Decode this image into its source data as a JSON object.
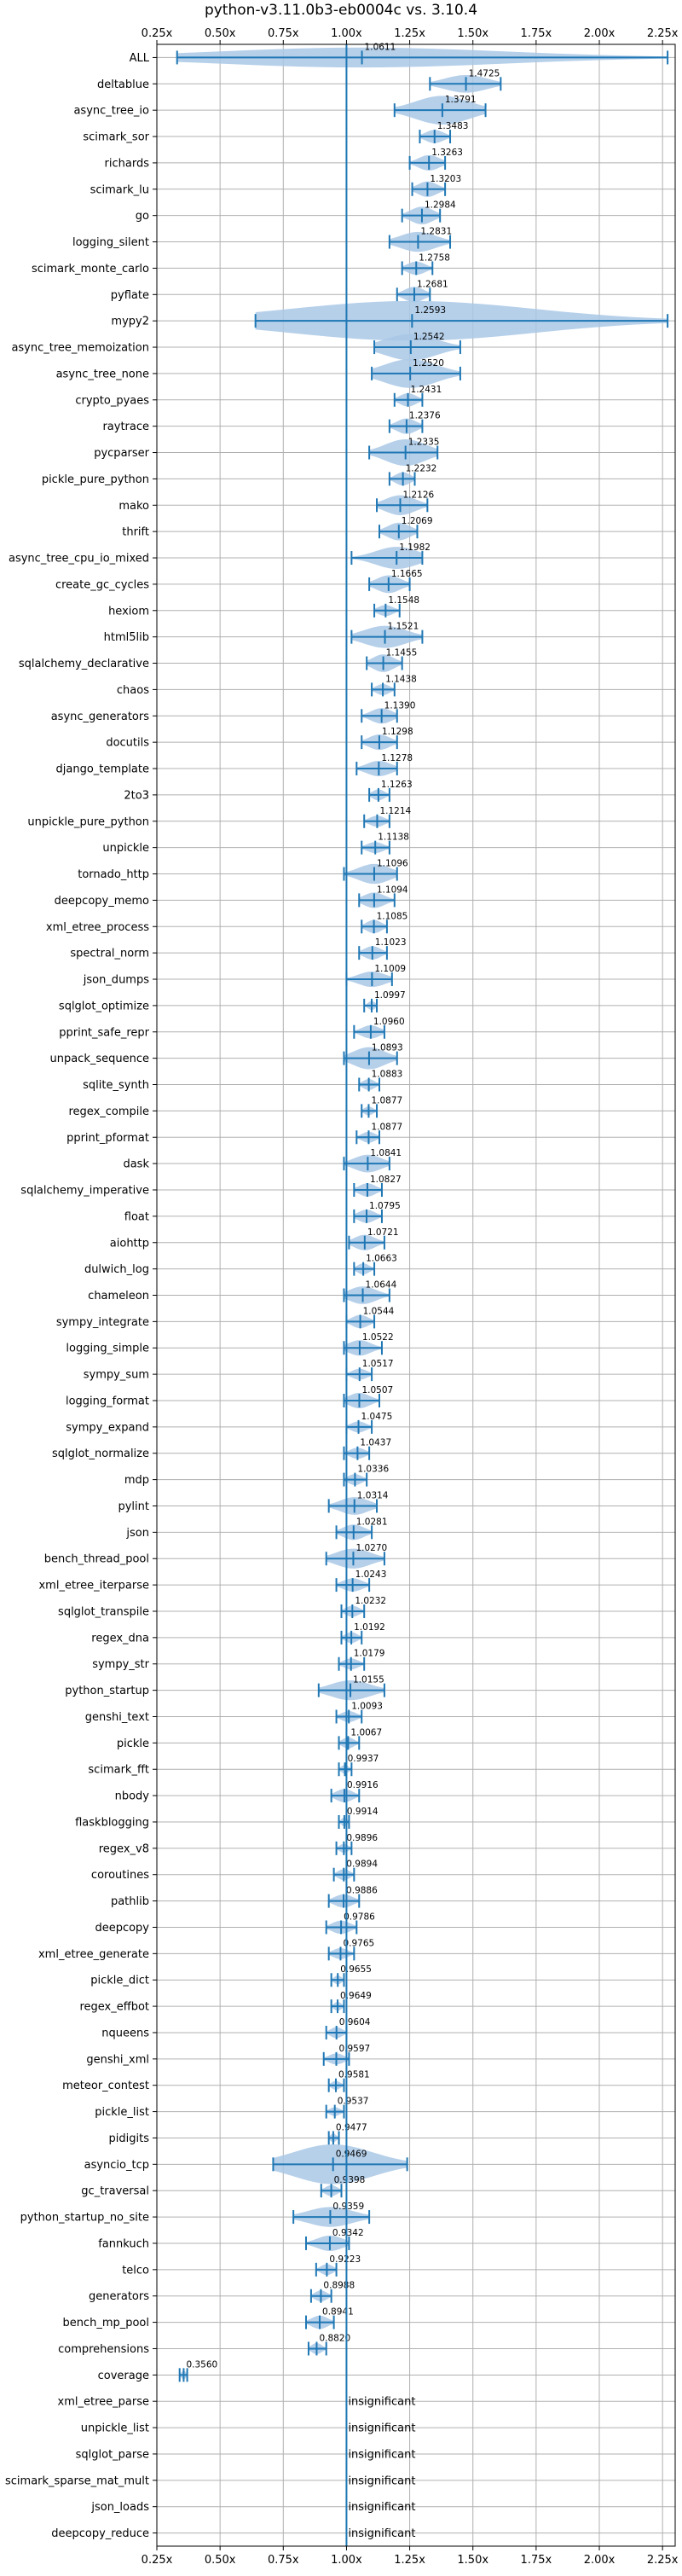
{
  "chart_data": {
    "type": "violin",
    "title": "python-v3.11.0b3-eb0004c vs. 3.10.4",
    "xlim": [
      0.25,
      2.3
    ],
    "xticks": [
      0.25,
      0.5,
      0.75,
      1.0,
      1.25,
      1.5,
      1.75,
      2.0,
      2.25
    ],
    "xtick_labels": [
      "0.25x",
      "0.50x",
      "0.75x",
      "1.00x",
      "1.25x",
      "1.50x",
      "1.75x",
      "2.00x",
      "2.25x"
    ],
    "reference_line": 1.0,
    "grid": true,
    "colors": {
      "violin": "#a9c8e6",
      "marker": "#1f77b4",
      "line": "#1f77b4"
    },
    "insignificant_label": "insignificant",
    "benchmarks": [
      {
        "name": "ALL",
        "mean": 1.0611,
        "label": "1.0611",
        "min": 0.33,
        "max": 2.27,
        "width": 0.09
      },
      {
        "name": "deltablue",
        "mean": 1.4725,
        "label": "1.4725",
        "min": 1.33,
        "max": 1.61,
        "width": 0.08
      },
      {
        "name": "async_tree_io",
        "mean": 1.3791,
        "label": "1.3791",
        "min": 1.19,
        "max": 1.55,
        "width": 0.13
      },
      {
        "name": "scimark_sor",
        "mean": 1.3483,
        "label": "1.3483",
        "min": 1.29,
        "max": 1.41,
        "width": 0.06
      },
      {
        "name": "richards",
        "mean": 1.3263,
        "label": "1.3263",
        "min": 1.25,
        "max": 1.39,
        "width": 0.07
      },
      {
        "name": "scimark_lu",
        "mean": 1.3203,
        "label": "1.3203",
        "min": 1.26,
        "max": 1.39,
        "width": 0.07
      },
      {
        "name": "go",
        "mean": 1.2984,
        "label": "1.2984",
        "min": 1.22,
        "max": 1.37,
        "width": 0.08
      },
      {
        "name": "logging_silent",
        "mean": 1.2831,
        "label": "1.2831",
        "min": 1.17,
        "max": 1.41,
        "width": 0.09
      },
      {
        "name": "scimark_monte_carlo",
        "mean": 1.2758,
        "label": "1.2758",
        "min": 1.22,
        "max": 1.34,
        "width": 0.06
      },
      {
        "name": "pyflate",
        "mean": 1.2681,
        "label": "1.2681",
        "min": 1.2,
        "max": 1.33,
        "width": 0.07
      },
      {
        "name": "mypy2",
        "mean": 1.2593,
        "label": "1.2593",
        "min": 0.64,
        "max": 2.27,
        "width": 0.18
      },
      {
        "name": "async_tree_memoization",
        "mean": 1.2542,
        "label": "1.2542",
        "min": 1.11,
        "max": 1.45,
        "width": 0.12
      },
      {
        "name": "async_tree_none",
        "mean": 1.252,
        "label": "1.2520",
        "min": 1.1,
        "max": 1.45,
        "width": 0.13
      },
      {
        "name": "crypto_pyaes",
        "mean": 1.2431,
        "label": "1.2431",
        "min": 1.19,
        "max": 1.3,
        "width": 0.06
      },
      {
        "name": "raytrace",
        "mean": 1.2376,
        "label": "1.2376",
        "min": 1.17,
        "max": 1.3,
        "width": 0.07
      },
      {
        "name": "pycparser",
        "mean": 1.2335,
        "label": "1.2335",
        "min": 1.09,
        "max": 1.36,
        "width": 0.12
      },
      {
        "name": "pickle_pure_python",
        "mean": 1.2232,
        "label": "1.2232",
        "min": 1.17,
        "max": 1.27,
        "width": 0.06
      },
      {
        "name": "mako",
        "mean": 1.2126,
        "label": "1.2126",
        "min": 1.12,
        "max": 1.32,
        "width": 0.09
      },
      {
        "name": "thrift",
        "mean": 1.2069,
        "label": "1.2069",
        "min": 1.13,
        "max": 1.28,
        "width": 0.08
      },
      {
        "name": "async_tree_cpu_io_mixed",
        "mean": 1.1982,
        "label": "1.1982",
        "min": 1.02,
        "max": 1.3,
        "width": 0.1
      },
      {
        "name": "create_gc_cycles",
        "mean": 1.1665,
        "label": "1.1665",
        "min": 1.09,
        "max": 1.25,
        "width": 0.08
      },
      {
        "name": "hexiom",
        "mean": 1.1548,
        "label": "1.1548",
        "min": 1.11,
        "max": 1.21,
        "width": 0.05
      },
      {
        "name": "html5lib",
        "mean": 1.1521,
        "label": "1.1521",
        "min": 1.02,
        "max": 1.3,
        "width": 0.1
      },
      {
        "name": "sqlalchemy_declarative",
        "mean": 1.1455,
        "label": "1.1455",
        "min": 1.08,
        "max": 1.22,
        "width": 0.08
      },
      {
        "name": "chaos",
        "mean": 1.1438,
        "label": "1.1438",
        "min": 1.1,
        "max": 1.19,
        "width": 0.05
      },
      {
        "name": "async_generators",
        "mean": 1.139,
        "label": "1.1390",
        "min": 1.06,
        "max": 1.2,
        "width": 0.07
      },
      {
        "name": "docutils",
        "mean": 1.1298,
        "label": "1.1298",
        "min": 1.06,
        "max": 1.2,
        "width": 0.07
      },
      {
        "name": "django_template",
        "mean": 1.1278,
        "label": "1.1278",
        "min": 1.04,
        "max": 1.2,
        "width": 0.07
      },
      {
        "name": "2to3",
        "mean": 1.1263,
        "label": "1.1263",
        "min": 1.09,
        "max": 1.17,
        "width": 0.05
      },
      {
        "name": "unpickle_pure_python",
        "mean": 1.1214,
        "label": "1.1214",
        "min": 1.07,
        "max": 1.17,
        "width": 0.05
      },
      {
        "name": "unpickle",
        "mean": 1.1138,
        "label": "1.1138",
        "min": 1.06,
        "max": 1.17,
        "width": 0.05
      },
      {
        "name": "tornado_http",
        "mean": 1.1096,
        "label": "1.1096",
        "min": 0.99,
        "max": 1.2,
        "width": 0.09
      },
      {
        "name": "deepcopy_memo",
        "mean": 1.1094,
        "label": "1.1094",
        "min": 1.05,
        "max": 1.19,
        "width": 0.07
      },
      {
        "name": "xml_etree_process",
        "mean": 1.1085,
        "label": "1.1085",
        "min": 1.06,
        "max": 1.16,
        "width": 0.06
      },
      {
        "name": "spectral_norm",
        "mean": 1.1023,
        "label": "1.1023",
        "min": 1.05,
        "max": 1.16,
        "width": 0.06
      },
      {
        "name": "json_dumps",
        "mean": 1.1009,
        "label": "1.1009",
        "min": 1.0,
        "max": 1.18,
        "width": 0.07
      },
      {
        "name": "sqlglot_optimize",
        "mean": 1.0997,
        "label": "1.0997",
        "min": 1.07,
        "max": 1.12,
        "width": 0.04
      },
      {
        "name": "pprint_safe_repr",
        "mean": 1.096,
        "label": "1.0960",
        "min": 1.03,
        "max": 1.15,
        "width": 0.06
      },
      {
        "name": "unpack_sequence",
        "mean": 1.0893,
        "label": "1.0893",
        "min": 0.99,
        "max": 1.2,
        "width": 0.1
      },
      {
        "name": "sqlite_synth",
        "mean": 1.0883,
        "label": "1.0883",
        "min": 1.05,
        "max": 1.13,
        "width": 0.05
      },
      {
        "name": "regex_compile",
        "mean": 1.0877,
        "label": "1.0877",
        "min": 1.06,
        "max": 1.12,
        "width": 0.04
      },
      {
        "name": "pprint_pformat",
        "mean": 1.0877,
        "label": "1.0877",
        "min": 1.04,
        "max": 1.13,
        "width": 0.05
      },
      {
        "name": "dask",
        "mean": 1.0841,
        "label": "1.0841",
        "min": 0.99,
        "max": 1.17,
        "width": 0.08
      },
      {
        "name": "sqlalchemy_imperative",
        "mean": 1.0827,
        "label": "1.0827",
        "min": 1.03,
        "max": 1.14,
        "width": 0.06
      },
      {
        "name": "float",
        "mean": 1.0795,
        "label": "1.0795",
        "min": 1.03,
        "max": 1.14,
        "width": 0.06
      },
      {
        "name": "aiohttp",
        "mean": 1.0721,
        "label": "1.0721",
        "min": 1.01,
        "max": 1.15,
        "width": 0.07
      },
      {
        "name": "dulwich_log",
        "mean": 1.0663,
        "label": "1.0663",
        "min": 1.03,
        "max": 1.11,
        "width": 0.05
      },
      {
        "name": "chameleon",
        "mean": 1.0644,
        "label": "1.0644",
        "min": 0.99,
        "max": 1.17,
        "width": 0.08
      },
      {
        "name": "sympy_integrate",
        "mean": 1.0544,
        "label": "1.0544",
        "min": 1.0,
        "max": 1.11,
        "width": 0.06
      },
      {
        "name": "logging_simple",
        "mean": 1.0522,
        "label": "1.0522",
        "min": 0.99,
        "max": 1.14,
        "width": 0.07
      },
      {
        "name": "sympy_sum",
        "mean": 1.0517,
        "label": "1.0517",
        "min": 1.0,
        "max": 1.1,
        "width": 0.05
      },
      {
        "name": "logging_format",
        "mean": 1.0507,
        "label": "1.0507",
        "min": 0.99,
        "max": 1.13,
        "width": 0.07
      },
      {
        "name": "sympy_expand",
        "mean": 1.0475,
        "label": "1.0475",
        "min": 1.0,
        "max": 1.1,
        "width": 0.05
      },
      {
        "name": "sqlglot_normalize",
        "mean": 1.0437,
        "label": "1.0437",
        "min": 0.99,
        "max": 1.09,
        "width": 0.05
      },
      {
        "name": "mdp",
        "mean": 1.0336,
        "label": "1.0336",
        "min": 0.99,
        "max": 1.08,
        "width": 0.05
      },
      {
        "name": "pylint",
        "mean": 1.0314,
        "label": "1.0314",
        "min": 0.93,
        "max": 1.12,
        "width": 0.08
      },
      {
        "name": "json",
        "mean": 1.0281,
        "label": "1.0281",
        "min": 0.96,
        "max": 1.1,
        "width": 0.07
      },
      {
        "name": "bench_thread_pool",
        "mean": 1.027,
        "label": "1.0270",
        "min": 0.92,
        "max": 1.15,
        "width": 0.09
      },
      {
        "name": "xml_etree_iterparse",
        "mean": 1.0243,
        "label": "1.0243",
        "min": 0.96,
        "max": 1.09,
        "width": 0.06
      },
      {
        "name": "sqlglot_transpile",
        "mean": 1.0232,
        "label": "1.0232",
        "min": 0.98,
        "max": 1.07,
        "width": 0.05
      },
      {
        "name": "regex_dna",
        "mean": 1.0192,
        "label": "1.0192",
        "min": 0.98,
        "max": 1.06,
        "width": 0.05
      },
      {
        "name": "sympy_str",
        "mean": 1.0179,
        "label": "1.0179",
        "min": 0.97,
        "max": 1.07,
        "width": 0.05
      },
      {
        "name": "python_startup",
        "mean": 1.0155,
        "label": "1.0155",
        "min": 0.89,
        "max": 1.15,
        "width": 0.09
      },
      {
        "name": "genshi_text",
        "mean": 1.0093,
        "label": "1.0093",
        "min": 0.96,
        "max": 1.06,
        "width": 0.05
      },
      {
        "name": "pickle",
        "mean": 1.0067,
        "label": "1.0067",
        "min": 0.97,
        "max": 1.05,
        "width": 0.05
      },
      {
        "name": "scimark_fft",
        "mean": 0.9937,
        "label": "0.9937",
        "min": 0.97,
        "max": 1.02,
        "width": 0.04
      },
      {
        "name": "nbody",
        "mean": 0.9916,
        "label": "0.9916",
        "min": 0.94,
        "max": 1.05,
        "width": 0.06
      },
      {
        "name": "flaskblogging",
        "mean": 0.9914,
        "label": "0.9914",
        "min": 0.97,
        "max": 1.01,
        "width": 0.04
      },
      {
        "name": "regex_v8",
        "mean": 0.9896,
        "label": "0.9896",
        "min": 0.96,
        "max": 1.02,
        "width": 0.04
      },
      {
        "name": "coroutines",
        "mean": 0.9894,
        "label": "0.9894",
        "min": 0.95,
        "max": 1.03,
        "width": 0.05
      },
      {
        "name": "pathlib",
        "mean": 0.9886,
        "label": "0.9886",
        "min": 0.93,
        "max": 1.05,
        "width": 0.06
      },
      {
        "name": "deepcopy",
        "mean": 0.9786,
        "label": "0.9786",
        "min": 0.92,
        "max": 1.04,
        "width": 0.06
      },
      {
        "name": "xml_etree_generate",
        "mean": 0.9765,
        "label": "0.9765",
        "min": 0.93,
        "max": 1.03,
        "width": 0.05
      },
      {
        "name": "pickle_dict",
        "mean": 0.9655,
        "label": "0.9655",
        "min": 0.94,
        "max": 0.99,
        "width": 0.04
      },
      {
        "name": "regex_effbot",
        "mean": 0.9649,
        "label": "0.9649",
        "min": 0.94,
        "max": 0.99,
        "width": 0.04
      },
      {
        "name": "nqueens",
        "mean": 0.9604,
        "label": "0.9604",
        "min": 0.92,
        "max": 1.0,
        "width": 0.05
      },
      {
        "name": "genshi_xml",
        "mean": 0.9597,
        "label": "0.9597",
        "min": 0.91,
        "max": 1.01,
        "width": 0.05
      },
      {
        "name": "meteor_contest",
        "mean": 0.9581,
        "label": "0.9581",
        "min": 0.93,
        "max": 0.99,
        "width": 0.04
      },
      {
        "name": "pickle_list",
        "mean": 0.9537,
        "label": "0.9537",
        "min": 0.92,
        "max": 0.99,
        "width": 0.04
      },
      {
        "name": "pidigits",
        "mean": 0.9477,
        "label": "0.9477",
        "min": 0.93,
        "max": 0.97,
        "width": 0.04
      },
      {
        "name": "asyncio_tcp",
        "mean": 0.9469,
        "label": "0.9469",
        "min": 0.71,
        "max": 1.24,
        "width": 0.18
      },
      {
        "name": "gc_traversal",
        "mean": 0.9398,
        "label": "0.9398",
        "min": 0.9,
        "max": 0.98,
        "width": 0.05
      },
      {
        "name": "python_startup_no_site",
        "mean": 0.9359,
        "label": "0.9359",
        "min": 0.79,
        "max": 1.09,
        "width": 0.09
      },
      {
        "name": "fannkuch",
        "mean": 0.9342,
        "label": "0.9342",
        "min": 0.84,
        "max": 1.01,
        "width": 0.07
      },
      {
        "name": "telco",
        "mean": 0.9223,
        "label": "0.9223",
        "min": 0.88,
        "max": 0.96,
        "width": 0.05
      },
      {
        "name": "generators",
        "mean": 0.8988,
        "label": "0.8988",
        "min": 0.86,
        "max": 0.94,
        "width": 0.05
      },
      {
        "name": "bench_mp_pool",
        "mean": 0.8941,
        "label": "0.8941",
        "min": 0.84,
        "max": 0.95,
        "width": 0.06
      },
      {
        "name": "comprehensions",
        "mean": 0.882,
        "label": "0.8820",
        "min": 0.85,
        "max": 0.92,
        "width": 0.05
      },
      {
        "name": "coverage",
        "mean": 0.356,
        "label": "0.3560",
        "min": 0.34,
        "max": 0.37,
        "width": 0.04
      },
      {
        "name": "xml_etree_parse",
        "insignificant": true
      },
      {
        "name": "unpickle_list",
        "insignificant": true
      },
      {
        "name": "sqlglot_parse",
        "insignificant": true
      },
      {
        "name": "scimark_sparse_mat_mult",
        "insignificant": true
      },
      {
        "name": "json_loads",
        "insignificant": true
      },
      {
        "name": "deepcopy_reduce",
        "insignificant": true
      }
    ]
  }
}
